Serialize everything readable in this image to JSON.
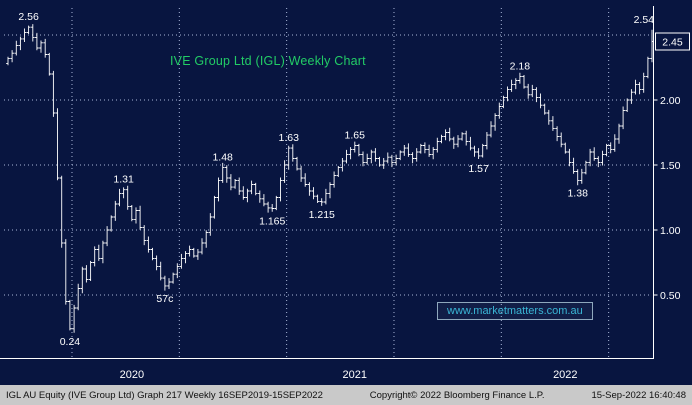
{
  "title": {
    "text": "IVE Group Ltd (IGL) Weekly Chart"
  },
  "watermark": {
    "text": "www.marketmatters.com.au"
  },
  "footer": {
    "left": "IGL AU Equity (IVE Group Ltd) Graph 217  Weekly 16SEP2019-15SEP2022",
    "center": "Copyright© 2022 Bloomberg Finance L.P.",
    "right": "15-Sep-2022 16:40:48"
  },
  "colors": {
    "background": "#081540",
    "grid": "#aab6d8",
    "bars": "#ffffff",
    "axis": "#ffffff",
    "title": "#22cc66",
    "watermark": "#3ab5d5",
    "annotation": "#ffffff",
    "footer_bg": "#c9c9c9",
    "footer_text": "#111111"
  },
  "chart_data": {
    "type": "bar",
    "subtype": "weekly-ohlc-bars",
    "title": "IVE Group Ltd (IGL) Weekly Chart",
    "security": "IGL AU Equity",
    "frequency": "Weekly",
    "x_range": [
      "16SEP2019",
      "15SEP2022"
    ],
    "grid": "dotted",
    "legend_position": "none",
    "y_axis": {
      "side": "right",
      "range": [
        0,
        2.7
      ],
      "ticks": [
        2.0,
        1.5,
        1.0,
        0.5
      ],
      "gridlines": [
        2.5,
        2.0,
        1.5,
        1.0,
        0.5
      ]
    },
    "x_tick_labels": [
      {
        "label": "2020",
        "week": 30
      },
      {
        "label": "2021",
        "week": 84
      },
      {
        "label": "2022",
        "week": 135
      }
    ],
    "vgrid_weeks": [
      15.5,
      41.5,
      67.5,
      93.5,
      119.5,
      145.5
    ],
    "last_price": "2.45",
    "last_bar_high": 2.54,
    "closes": [
      2.32,
      2.36,
      2.42,
      2.47,
      2.52,
      2.56,
      2.48,
      2.4,
      2.44,
      2.35,
      2.2,
      1.9,
      1.4,
      0.9,
      0.45,
      0.24,
      0.4,
      0.55,
      0.7,
      0.62,
      0.75,
      0.85,
      0.78,
      0.9,
      1.0,
      1.1,
      1.2,
      1.28,
      1.31,
      1.18,
      1.08,
      1.15,
      1.02,
      0.92,
      0.85,
      0.78,
      0.72,
      0.63,
      0.57,
      0.6,
      0.66,
      0.72,
      0.78,
      0.82,
      0.85,
      0.8,
      0.83,
      0.9,
      0.98,
      1.1,
      1.25,
      1.38,
      1.48,
      1.4,
      1.33,
      1.38,
      1.3,
      1.25,
      1.3,
      1.35,
      1.28,
      1.24,
      1.2,
      1.17,
      1.165,
      1.25,
      1.38,
      1.5,
      1.63,
      1.55,
      1.47,
      1.4,
      1.35,
      1.3,
      1.26,
      1.22,
      1.215,
      1.28,
      1.35,
      1.42,
      1.48,
      1.53,
      1.58,
      1.62,
      1.65,
      1.58,
      1.52,
      1.55,
      1.6,
      1.55,
      1.5,
      1.53,
      1.56,
      1.52,
      1.55,
      1.6,
      1.63,
      1.58,
      1.55,
      1.6,
      1.65,
      1.62,
      1.58,
      1.62,
      1.68,
      1.72,
      1.75,
      1.7,
      1.66,
      1.7,
      1.74,
      1.68,
      1.63,
      1.6,
      1.57,
      1.65,
      1.73,
      1.8,
      1.88,
      1.95,
      2.02,
      2.08,
      2.12,
      2.15,
      2.18,
      2.1,
      2.04,
      2.08,
      2.02,
      1.96,
      1.9,
      1.84,
      1.78,
      1.72,
      1.66,
      1.6,
      1.52,
      1.45,
      1.38,
      1.44,
      1.52,
      1.6,
      1.55,
      1.52,
      1.58,
      1.65,
      1.62,
      1.7,
      1.8,
      1.92,
      2.0,
      2.06,
      2.12,
      2.08,
      2.18,
      2.32,
      2.45
    ],
    "annotations": [
      {
        "text": "2.56",
        "week": 5,
        "price": 2.56,
        "placement": "above"
      },
      {
        "text": "0.24",
        "week": 15,
        "price": 0.24,
        "placement": "below"
      },
      {
        "text": "1.31",
        "week": 28,
        "price": 1.31,
        "placement": "above"
      },
      {
        "text": "57c",
        "week": 38,
        "price": 0.57,
        "placement": "below"
      },
      {
        "text": "1.48",
        "week": 52,
        "price": 1.48,
        "placement": "above"
      },
      {
        "text": "1.165",
        "week": 64,
        "price": 1.165,
        "placement": "below"
      },
      {
        "text": "1.63",
        "week": 68,
        "price": 1.63,
        "placement": "above"
      },
      {
        "text": "1.215",
        "week": 76,
        "price": 1.215,
        "placement": "below"
      },
      {
        "text": "1.65",
        "week": 84,
        "price": 1.65,
        "placement": "above"
      },
      {
        "text": "1.57",
        "week": 114,
        "price": 1.57,
        "placement": "below"
      },
      {
        "text": "2.18",
        "week": 124,
        "price": 2.18,
        "placement": "above"
      },
      {
        "text": "1.38",
        "week": 138,
        "price": 1.38,
        "placement": "below"
      },
      {
        "text": "2.54",
        "week": 156,
        "price": 2.54,
        "placement": "above"
      }
    ]
  }
}
